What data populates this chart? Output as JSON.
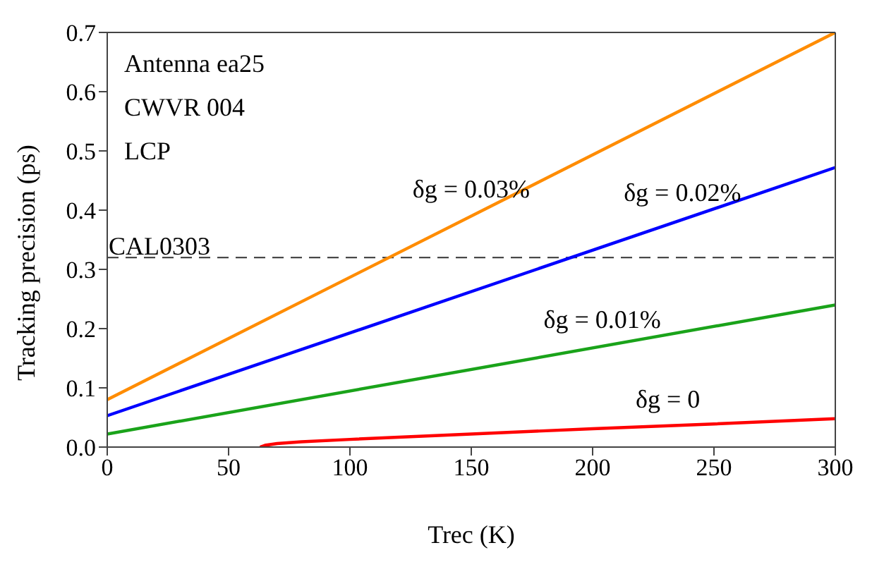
{
  "chart_data": {
    "type": "line",
    "xlabel": "Trec (K)",
    "ylabel": "Tracking precision (ps)",
    "xlim": [
      0,
      300
    ],
    "xticks": [
      0,
      50,
      100,
      150,
      200,
      250,
      300
    ],
    "ylim": [
      0,
      0.7
    ],
    "yticks": [
      {
        "value": 0,
        "label": "0.0"
      },
      0.1,
      0.2,
      0.3,
      0.4,
      0.5,
      0.6,
      0.7
    ],
    "grid": false,
    "marker": "none",
    "line_style": "solid",
    "series": [
      {
        "name": "δg = 0.03%",
        "color": "#ff8c00",
        "x": [
          0,
          300
        ],
        "values": [
          0.08,
          0.7
        ]
      },
      {
        "name": "δg = 0.02%",
        "color": "#0000ff",
        "x": [
          0,
          300
        ],
        "values": [
          0.053,
          0.472
        ]
      },
      {
        "name": "δg = 0.01%",
        "color": "#1aa31a",
        "x": [
          0,
          300
        ],
        "values": [
          0.022,
          0.24
        ]
      },
      {
        "name": "δg = 0",
        "color": "#ff0000",
        "x": [
          63,
          65,
          70,
          80,
          100,
          150,
          200,
          250,
          300
        ],
        "values": [
          0,
          0.003,
          0.006,
          0.009,
          0.013,
          0.022,
          0.031,
          0.039,
          0.048
        ]
      }
    ],
    "ref_lines": [
      {
        "axis": "y",
        "value": 0.32,
        "label": "CAL0303",
        "color": "#333333",
        "line_style": "dashed"
      }
    ],
    "annotations": [
      "Antenna ea25",
      "CWVR 004",
      "LCP"
    ]
  }
}
